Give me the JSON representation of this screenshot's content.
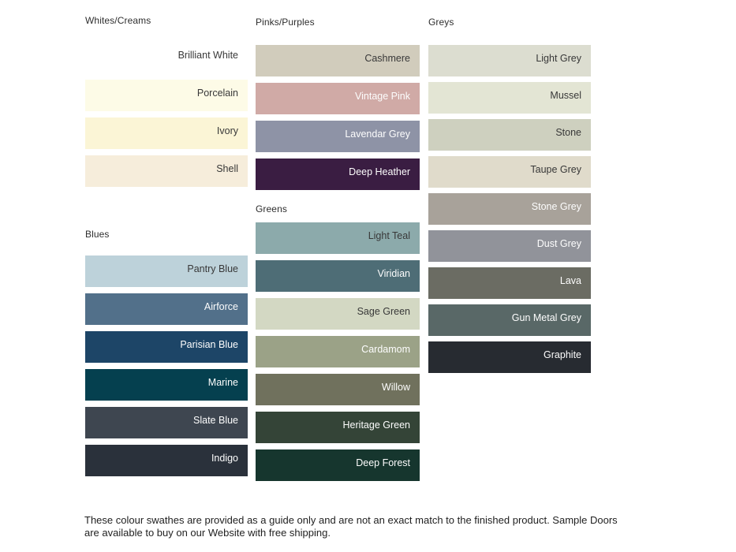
{
  "page": {
    "background": "#ffffff",
    "footer": "These colour swathes are provided as a guide only and are not an exact match to the finished product.  Sample Doors are available to buy on our Website with free shipping."
  },
  "groups": [
    {
      "id": "whites-creams",
      "label": "Whites/Creams",
      "swatches": [
        {
          "name": "Brilliant White",
          "color": "#ffffff",
          "text": "dark"
        },
        {
          "name": "Porcelain",
          "color": "#fdfbe7",
          "text": "dark"
        },
        {
          "name": "Ivory",
          "color": "#fbf5d6",
          "text": "dark"
        },
        {
          "name": "Shell",
          "color": "#f6eddb",
          "text": "dark"
        }
      ]
    },
    {
      "id": "blues",
      "label": "Blues",
      "swatches": [
        {
          "name": "Pantry Blue",
          "color": "#bdd2da",
          "text": "dark"
        },
        {
          "name": "Airforce",
          "color": "#52708a",
          "text": "light"
        },
        {
          "name": "Parisian Blue",
          "color": "#1d4567",
          "text": "light"
        },
        {
          "name": "Marine",
          "color": "#05404f",
          "text": "light"
        },
        {
          "name": "Slate Blue",
          "color": "#3e4650",
          "text": "light"
        },
        {
          "name": "Indigo",
          "color": "#2a313b",
          "text": "light"
        }
      ]
    },
    {
      "id": "pinks-purples",
      "label": "Pinks/Purples",
      "swatches": [
        {
          "name": "Cashmere",
          "color": "#d1ccbc",
          "text": "dark"
        },
        {
          "name": "Vintage Pink",
          "color": "#d0aaa6",
          "text": "light"
        },
        {
          "name": "Lavendar Grey",
          "color": "#8e93a6",
          "text": "light"
        },
        {
          "name": "Deep Heather",
          "color": "#3a1d42",
          "text": "light"
        }
      ]
    },
    {
      "id": "greens",
      "label": "Greens",
      "swatches": [
        {
          "name": "Light Teal",
          "color": "#8caaab",
          "text": "dark"
        },
        {
          "name": "Viridian",
          "color": "#4e6d76",
          "text": "light"
        },
        {
          "name": "Sage Green",
          "color": "#d3d8c3",
          "text": "dark"
        },
        {
          "name": "Cardamom",
          "color": "#9ba287",
          "text": "light"
        },
        {
          "name": "Willow",
          "color": "#70715d",
          "text": "light"
        },
        {
          "name": "Heritage Green",
          "color": "#344437",
          "text": "light"
        },
        {
          "name": "Deep Forest",
          "color": "#16362e",
          "text": "light"
        }
      ]
    },
    {
      "id": "greys",
      "label": "Greys",
      "swatches": [
        {
          "name": "Light Grey",
          "color": "#dcddd0",
          "text": "dark"
        },
        {
          "name": "Mussel",
          "color": "#e3e5d4",
          "text": "dark"
        },
        {
          "name": "Stone",
          "color": "#ced0bf",
          "text": "dark"
        },
        {
          "name": "Taupe Grey",
          "color": "#e0dbcb",
          "text": "dark"
        },
        {
          "name": "Stone Grey",
          "color": "#a8a29a",
          "text": "light"
        },
        {
          "name": "Dust Grey",
          "color": "#91939a",
          "text": "light"
        },
        {
          "name": "Lava",
          "color": "#6b6c63",
          "text": "light"
        },
        {
          "name": "Gun Metal Grey",
          "color": "#596867",
          "text": "light"
        },
        {
          "name": "Graphite",
          "color": "#272b31",
          "text": "light"
        }
      ]
    }
  ]
}
